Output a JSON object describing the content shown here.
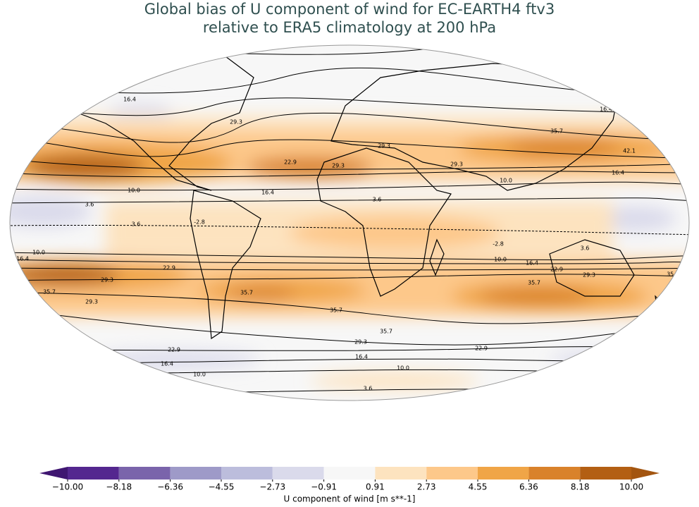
{
  "title": "Global bias of U component of wind for EC-EARTH4 ftv3",
  "subtitle": "relative to ERA5 climatology at 200 hPa",
  "contour_levels": [
    -2.8,
    3.6,
    {
      "value": 10,
      "label": "10.0"
    },
    16.4,
    22.9,
    29.3,
    35.7,
    42.1
  ],
  "colorbar": {
    "label": "U component of wind [m s**-1]",
    "ticks": [
      {
        "value": -10,
        "label": "−10.00"
      },
      {
        "value": -8.18,
        "label": "−8.18"
      },
      {
        "value": -6.36,
        "label": "−6.36"
      },
      {
        "value": -4.55,
        "label": "−4.55"
      },
      {
        "value": -2.73,
        "label": "−2.73"
      },
      {
        "value": -0.91,
        "label": "−0.91"
      },
      {
        "value": 0.91,
        "label": "0.91"
      },
      {
        "value": 2.73,
        "label": "2.73"
      },
      {
        "value": 4.55,
        "label": "4.55"
      },
      {
        "value": 6.36,
        "label": "6.36"
      },
      {
        "value": 8.18,
        "label": "8.18"
      },
      {
        "value": 10,
        "label": "10.00"
      }
    ],
    "colors": [
      "#54278f",
      "#7a64ab",
      "#9e9ac8",
      "#bcbddc",
      "#dadaeb",
      "#f7f7f7",
      "#fde3bf",
      "#fdc88a",
      "#f0a547",
      "#d9822b",
      "#b35f13"
    ],
    "extend_colors": [
      "#3f1671",
      "#a35510"
    ]
  }
}
